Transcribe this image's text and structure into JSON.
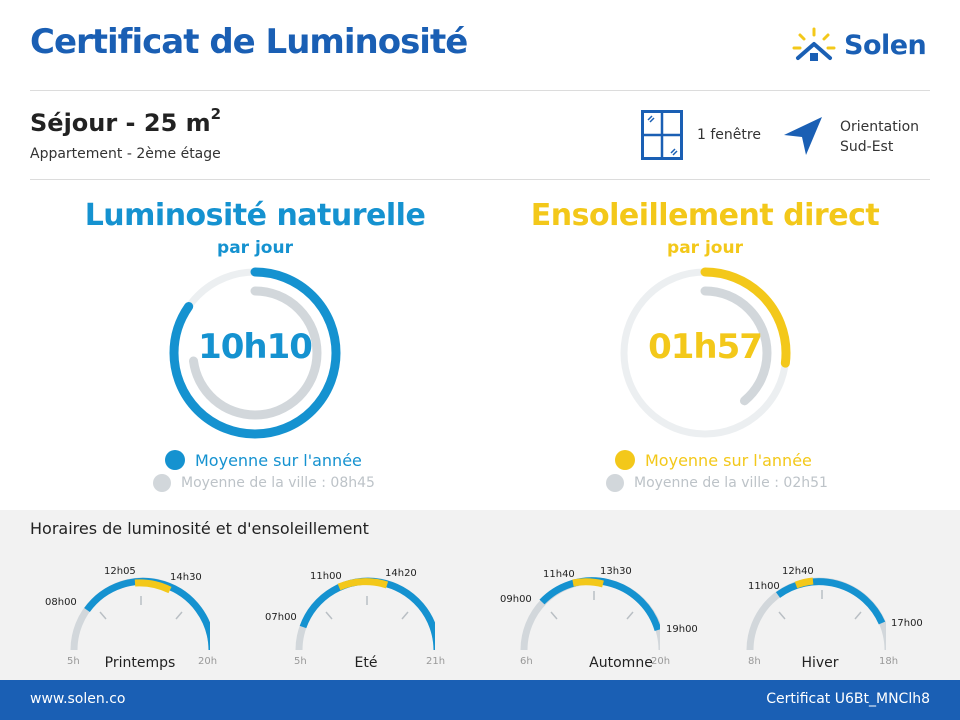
{
  "header": {
    "title": "Certificat de Luminosité",
    "brand": "Solen"
  },
  "room": {
    "title": "Séjour - 25 m",
    "area_exponent": "2",
    "subtitle": "Appartement - 2ème étage",
    "windows_label": "1 fenêtre",
    "orientation_label_1": "Orientation",
    "orientation_label_2": "Sud-Est"
  },
  "natural_light": {
    "title": "Luminosité naturelle",
    "subtitle": "par jour",
    "value": "10h10",
    "legend_primary": "Moyenne sur l'année",
    "legend_city": "Moyenne de la ville : 08h45",
    "fraction_value": 0.847,
    "fraction_city": 0.729
  },
  "direct_sun": {
    "title": "Ensoleillement direct",
    "subtitle": "par jour",
    "value": "01h57",
    "legend_primary": "Moyenne sur l'année",
    "legend_city": "Moyenne de la ville : 02h51",
    "fraction_value": 0.27,
    "fraction_city": 0.39
  },
  "schedule": {
    "title": "Horaires de luminosité et d'ensoleillement",
    "seasons": [
      {
        "name": "Printemps",
        "start": "5h",
        "end": "20h",
        "light_from": "08h00",
        "sun_from": "12h05",
        "sun_to": "14h30",
        "light_to": null
      },
      {
        "name": "Eté",
        "start": "5h",
        "end": "21h",
        "light_from": "07h00",
        "sun_from": "11h00",
        "sun_to": "14h20",
        "light_to": null
      },
      {
        "name": "Automne",
        "start": "6h",
        "end": "20h",
        "light_from": "09h00",
        "sun_from": "11h40",
        "sun_to": "13h30",
        "light_to": "19h00"
      },
      {
        "name": "Hiver",
        "start": "8h",
        "end": "18h",
        "light_from": "11h00",
        "sun_from": "12h40",
        "sun_to": null,
        "light_to": "17h00"
      }
    ]
  },
  "footer": {
    "website": "www.solen.co",
    "certificate": "Certificat U6Bt_MNClh8"
  },
  "colors": {
    "brand_blue": "#1a5fb4",
    "light_blue": "#1592d0",
    "sun_yellow": "#f3c81a",
    "track_gray": "#d2d7db"
  }
}
